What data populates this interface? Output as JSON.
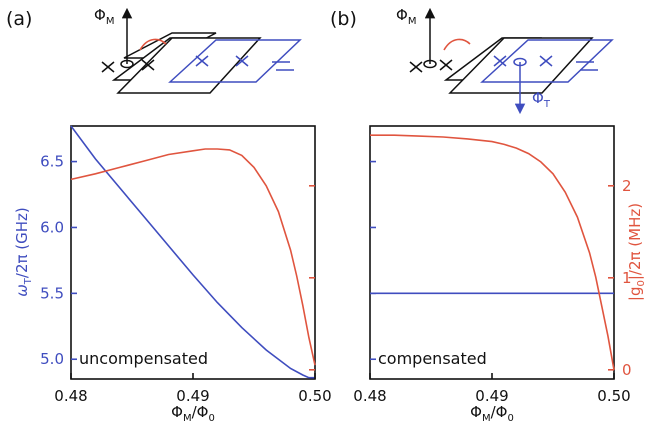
{
  "colors": {
    "blue": "#3f4dbf",
    "red": "#e0553f",
    "black": "#111111"
  },
  "panels": [
    {
      "letter": "(a)",
      "annotation": "uncompensated",
      "flux_m_label": "Φ",
      "flux_m_sub": "M",
      "flux_t_label": "",
      "flux_t_sub": ""
    },
    {
      "letter": "(b)",
      "annotation": "compensated",
      "flux_m_label": "Φ",
      "flux_m_sub": "M",
      "flux_t_label": "Φ",
      "flux_t_sub": "T"
    }
  ],
  "left_axis": {
    "label_parts": [
      "ω",
      "T",
      "/2π (GHz)"
    ],
    "ylim": [
      4.85,
      6.77
    ],
    "ticks": [
      5.0,
      5.5,
      6.0,
      6.5
    ],
    "tick_labels": [
      "5.0",
      "5.5",
      "6.0",
      "6.5"
    ]
  },
  "right_axis": {
    "label_parts": [
      "|g",
      "0",
      "|/2π (MHz)"
    ],
    "ylim": [
      -0.1,
      2.65
    ],
    "ticks": [
      0,
      1,
      2
    ],
    "tick_labels": [
      "0",
      "1",
      "2"
    ]
  },
  "x_axis": {
    "label_parts": [
      "Φ",
      "M",
      "/Φ",
      "0"
    ],
    "xlim": [
      0.48,
      0.5
    ],
    "ticks": [
      0.48,
      0.49,
      0.5
    ],
    "tick_labels": [
      "0.48",
      "0.49",
      "0.50"
    ]
  },
  "chart_data": [
    {
      "type": "line",
      "panel": "(a)",
      "annotation": "uncompensated",
      "series": [
        {
          "axis": "left",
          "color": "#3f4dbf",
          "x": [
            0.48,
            0.482,
            0.484,
            0.486,
            0.488,
            0.49,
            0.492,
            0.494,
            0.496,
            0.498,
            0.499,
            0.4995,
            0.5
          ],
          "y": [
            6.77,
            6.52,
            6.3,
            6.08,
            5.86,
            5.64,
            5.43,
            5.24,
            5.07,
            4.93,
            4.88,
            4.86,
            4.86
          ]
        },
        {
          "axis": "right",
          "color": "#e0553f",
          "x": [
            0.48,
            0.482,
            0.484,
            0.486,
            0.488,
            0.49,
            0.491,
            0.492,
            0.493,
            0.494,
            0.495,
            0.496,
            0.497,
            0.498,
            0.4985,
            0.499,
            0.4995,
            0.5
          ],
          "y": [
            2.07,
            2.13,
            2.2,
            2.27,
            2.34,
            2.38,
            2.4,
            2.4,
            2.39,
            2.33,
            2.2,
            2.0,
            1.72,
            1.3,
            1.02,
            0.7,
            0.35,
            0.05
          ]
        }
      ]
    },
    {
      "type": "line",
      "panel": "(b)",
      "annotation": "compensated",
      "series": [
        {
          "axis": "left",
          "color": "#3f4dbf",
          "x": [
            0.48,
            0.5
          ],
          "y": [
            5.5,
            5.5
          ]
        },
        {
          "axis": "right",
          "color": "#e0553f",
          "x": [
            0.48,
            0.482,
            0.484,
            0.486,
            0.488,
            0.49,
            0.491,
            0.492,
            0.493,
            0.494,
            0.495,
            0.496,
            0.497,
            0.498,
            0.4985,
            0.499,
            0.4995,
            0.5
          ],
          "y": [
            2.55,
            2.55,
            2.54,
            2.53,
            2.51,
            2.48,
            2.45,
            2.41,
            2.35,
            2.26,
            2.13,
            1.93,
            1.66,
            1.27,
            1.01,
            0.69,
            0.37,
            0.0
          ]
        }
      ]
    }
  ]
}
